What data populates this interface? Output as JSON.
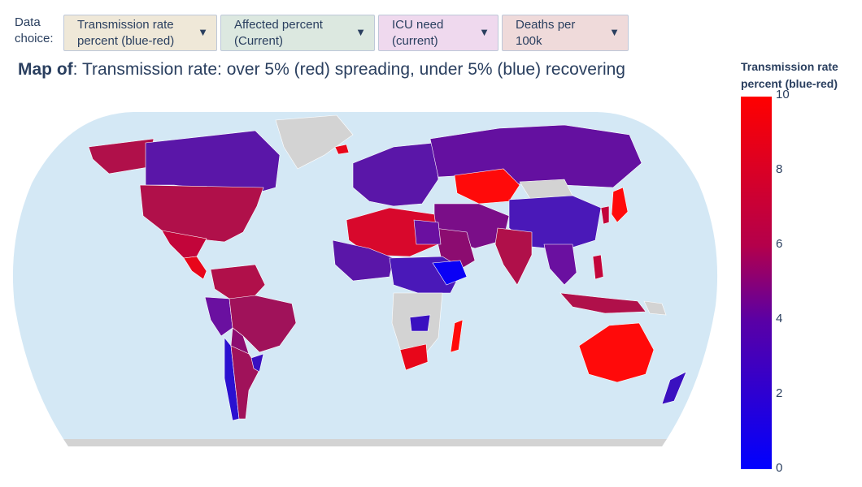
{
  "controls": {
    "label": "Data choice:",
    "dropdowns": [
      {
        "label": "Transmission rate percent (blue-red)",
        "color": "#efe8d8"
      },
      {
        "label": "Affected percent (Current)",
        "color": "#dce8e0"
      },
      {
        "label": "ICU need (current)",
        "color": "#efd9ee"
      },
      {
        "label": "Deaths per 100k",
        "color": "#efdada"
      }
    ],
    "arrow_icon": "▼"
  },
  "title": {
    "bold": "Map of",
    "rest": ": Transmission rate: over 5% (red) spreading, under 5% (blue) recovering"
  },
  "colorbar": {
    "title": "Transmission rate percent (blue-red)",
    "ticks": [
      "10",
      "8",
      "6",
      "4",
      "2",
      "0"
    ],
    "range": [
      0,
      10
    ],
    "colors": {
      "low": "#0000ff",
      "mid": "#7a0090",
      "high": "#ff0000"
    }
  },
  "map": {
    "projection": "robinson",
    "ocean_color": "#d4e8f5",
    "no_data_color": "#d3d3d3"
  }
}
